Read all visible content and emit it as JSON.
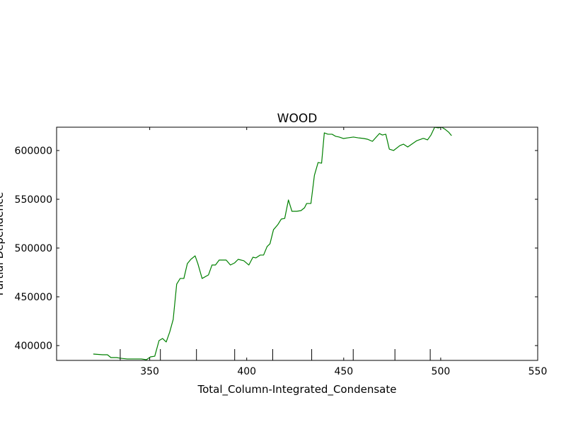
{
  "chart_data": {
    "type": "line",
    "title": "WOOD",
    "x_label": "Total_Column-Integrated_Condensate",
    "y_label": "Partial Dependence",
    "color": "#008000",
    "xlim": [
      302,
      550
    ],
    "ylim": [
      384800,
      623900
    ],
    "xticks": [
      350,
      400,
      450,
      500,
      550
    ],
    "yticks": [
      400000,
      450000,
      500000,
      550000,
      600000
    ],
    "deciles": [
      334.8,
      355.5,
      374.1,
      393.8,
      413.4,
      433.5,
      454.9,
      476.4,
      494.6
    ],
    "x": [
      320.9,
      325.7,
      328.2,
      330.0,
      333.0,
      334.8,
      338.4,
      342.1,
      345.7,
      348.3,
      350.4,
      352.6,
      354.8,
      356.6,
      358.5,
      360.3,
      362.1,
      363.9,
      365.7,
      367.6,
      369.4,
      371.2,
      373.4,
      374.8,
      377.0,
      380.3,
      382.1,
      383.9,
      385.8,
      389.4,
      391.6,
      393.8,
      395.6,
      398.5,
      401.1,
      403.2,
      404.7,
      406.9,
      408.7,
      410.5,
      412.0,
      413.8,
      416.0,
      417.8,
      419.6,
      421.5,
      423.3,
      425.8,
      428.0,
      429.8,
      430.9,
      433.1,
      434.9,
      436.8,
      438.6,
      440.0,
      441.9,
      444.0,
      445.9,
      447.7,
      449.9,
      452.1,
      455.0,
      457.5,
      460.4,
      462.2,
      464.8,
      468.4,
      469.9,
      471.7,
      473.5,
      475.7,
      479.0,
      480.8,
      483.0,
      485.6,
      487.7,
      489.9,
      490.7,
      491.4,
      493.2,
      495.0,
      496.9,
      498.7,
      500.5,
      502.3,
      504.1,
      505.6
    ],
    "values": [
      391300,
      390600,
      390600,
      387700,
      387700,
      387000,
      386300,
      386300,
      386300,
      385500,
      388400,
      389100,
      405100,
      407300,
      403700,
      413800,
      426800,
      463000,
      468800,
      468800,
      484100,
      488400,
      492000,
      484100,
      468800,
      472500,
      482600,
      482600,
      487700,
      487700,
      482600,
      484800,
      488400,
      487000,
      482600,
      490600,
      489900,
      492800,
      492800,
      501500,
      504400,
      518800,
      523900,
      529700,
      530400,
      549300,
      537700,
      537700,
      538400,
      541300,
      545700,
      545700,
      574600,
      587700,
      587000,
      618100,
      616700,
      616700,
      614500,
      613800,
      612300,
      613000,
      613800,
      613000,
      612300,
      611600,
      609400,
      617400,
      615900,
      616700,
      601400,
      600000,
      605100,
      606500,
      603600,
      607200,
      610100,
      611600,
      612300,
      612300,
      610900,
      615900,
      623900,
      623200,
      623900,
      621700,
      618800,
      615200
    ]
  }
}
